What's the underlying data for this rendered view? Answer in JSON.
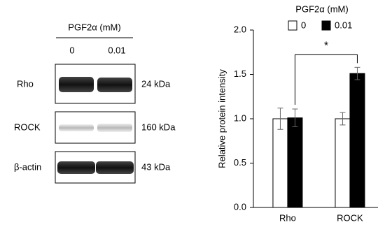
{
  "blot": {
    "header": "PGF2α (mM)",
    "lanes": [
      "0",
      "0.01"
    ],
    "rows": [
      {
        "label": "Rho",
        "size": "24 kDa"
      },
      {
        "label": "ROCK",
        "size": "160 kDa"
      },
      {
        "label": "β-actin",
        "size": "43 kDa"
      }
    ]
  },
  "chart_data": {
    "type": "bar",
    "ylabel": "Relative protein intensity",
    "legend_title": "PGF2α (mM)",
    "categories": [
      "Rho",
      "ROCK"
    ],
    "series": [
      {
        "name": "0",
        "color": "#ffffff",
        "values": [
          1.0,
          1.0
        ],
        "errors": [
          0.12,
          0.07
        ]
      },
      {
        "name": "0.01",
        "color": "#000000",
        "values": [
          1.01,
          1.51
        ],
        "errors": [
          0.1,
          0.07
        ]
      }
    ],
    "ylim": [
      0,
      2
    ],
    "yticks": [
      {
        "value": 0,
        "label": "0.0"
      },
      0.5,
      {
        "value": 1,
        "label": "1.0"
      },
      1.5,
      {
        "value": 2,
        "label": "2.0"
      }
    ],
    "annotation": "*"
  }
}
